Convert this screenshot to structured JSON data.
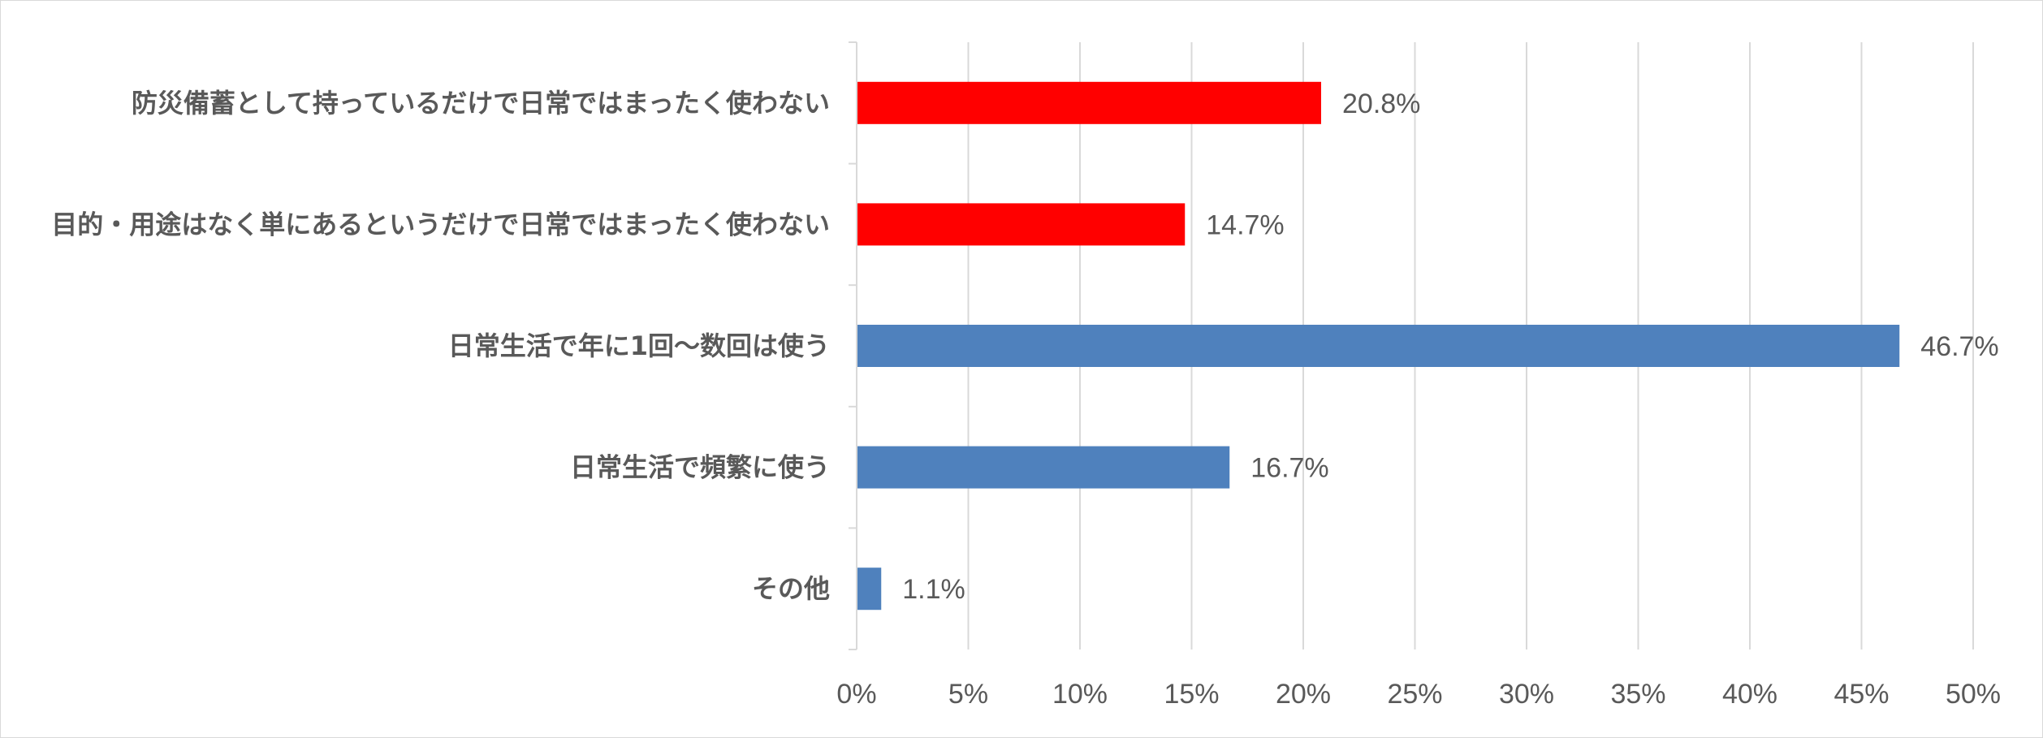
{
  "chart_data": {
    "type": "bar",
    "orientation": "horizontal",
    "title": "",
    "xlabel": "",
    "ylabel": "",
    "categories": [
      "防災備蓄として持っているだけで日常ではまったく使わない",
      "目的・用途はなく単にあるというだけで日常ではまったく使わない",
      "日常生活で年に1回～数回は使う",
      "日常生活で頻繁に使う",
      "その他"
    ],
    "values": [
      20.8,
      14.7,
      46.7,
      16.7,
      1.1
    ],
    "value_labels": [
      "20.8%",
      "14.7%",
      "46.7%",
      "16.7%",
      "1.1%"
    ],
    "bar_colors": [
      "#ff0000",
      "#ff0000",
      "#4f81bd",
      "#4f81bd",
      "#4f81bd"
    ],
    "xlim": [
      0,
      50
    ],
    "x_ticks": [
      0,
      5,
      10,
      15,
      20,
      25,
      30,
      35,
      40,
      45,
      50
    ],
    "x_tick_labels": [
      "0%",
      "5%",
      "10%",
      "15%",
      "20%",
      "25%",
      "30%",
      "35%",
      "40%",
      "45%",
      "50%"
    ],
    "grid": "vertical",
    "legend": "none"
  },
  "colors": {
    "highlight": "#ff0000",
    "primary": "#4f81bd",
    "gridline": "#d9d9d9",
    "text": "#595959"
  }
}
